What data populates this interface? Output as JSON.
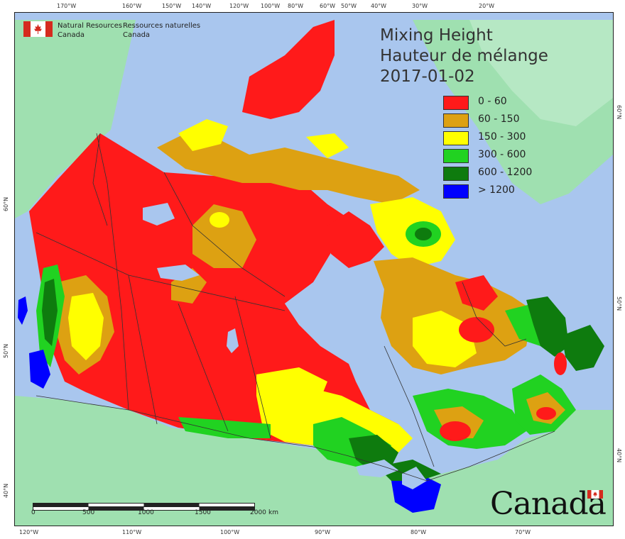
{
  "map": {
    "title_en": "Mixing Height",
    "title_fr": "Hauteur de mélange",
    "date": "2017-01-02",
    "colors": {
      "ocean": "#a9c6ee",
      "land": "#9fe0b0",
      "border": "#333333"
    }
  },
  "legend": {
    "items": [
      {
        "label": "0 - 60",
        "color": "#ff1a1a"
      },
      {
        "label": "60 - 150",
        "color": "#dda112"
      },
      {
        "label": "150 - 300",
        "color": "#ffff00"
      },
      {
        "label": "300 - 600",
        "color": "#21d221"
      },
      {
        "label": "600 - 1200",
        "color": "#0e7b0e"
      },
      {
        "label": "> 1200",
        "color": "#0000ff"
      }
    ]
  },
  "agency": {
    "en_line1": "Natural Resources",
    "en_line2": "Canada",
    "fr_line1": "Ressources naturelles",
    "fr_line2": "Canada"
  },
  "top_longitudes": [
    "170°W",
    "160°W",
    "150°W",
    "140°W",
    "120°W",
    "100°W",
    "80°W",
    "60°W",
    "50°W",
    "40°W",
    "30°W",
    "20°W"
  ],
  "bottom_longitudes": [
    "120°W",
    "110°W",
    "100°W",
    "90°W",
    "80°W",
    "70°W"
  ],
  "left_latitudes": [
    "60°N",
    "50°N",
    "40°N"
  ],
  "right_latitudes": [
    "60°N",
    "50°N",
    "40°N"
  ],
  "scale": {
    "labels": [
      "0",
      "500",
      "1000",
      "1500",
      "2000"
    ],
    "unit": "km"
  },
  "wordmark": "Canada"
}
